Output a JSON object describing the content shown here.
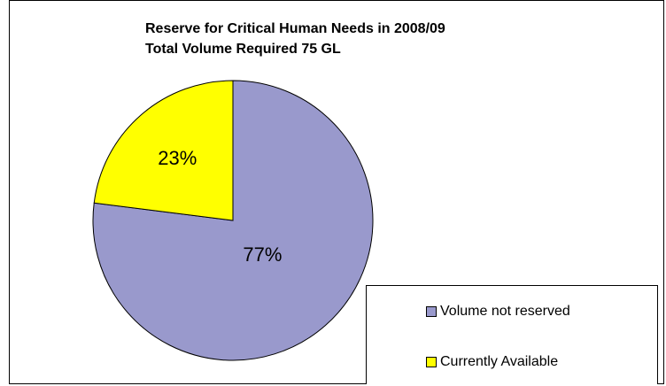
{
  "chart_data": {
    "type": "pie",
    "title": "Reserve for Critical Human Needs in 2008/09",
    "subtitle": "Total Volume Required 75 GL",
    "legend_position": "bottom-right",
    "slices": [
      {
        "label": "Volume not reserved",
        "value": 77,
        "display": "77%",
        "color": "#9999CC"
      },
      {
        "label": "Currently Available",
        "value": 23,
        "display": "23%",
        "color": "#FFFF00"
      }
    ]
  }
}
